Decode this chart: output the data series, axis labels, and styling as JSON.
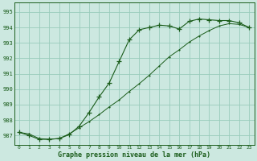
{
  "title": "Graphe pression niveau de la mer (hPa)",
  "bg_color": "#cce8e0",
  "grid_color": "#99ccbb",
  "line_color": "#1a5c1a",
  "xlim": [
    -0.5,
    23.5
  ],
  "ylim": [
    986.4,
    995.6
  ],
  "yticks": [
    987,
    988,
    989,
    990,
    991,
    992,
    993,
    994,
    995
  ],
  "xticks": [
    0,
    1,
    2,
    3,
    4,
    5,
    6,
    7,
    8,
    9,
    10,
    11,
    12,
    13,
    14,
    15,
    16,
    17,
    18,
    19,
    20,
    21,
    22,
    23
  ],
  "series1_x": [
    0,
    1,
    2,
    3,
    4,
    5,
    6,
    7,
    8,
    9,
    10,
    11,
    12,
    13,
    14,
    15,
    16,
    17,
    18,
    19,
    20,
    21,
    22,
    23
  ],
  "series1_y": [
    987.2,
    987.1,
    986.8,
    986.75,
    986.8,
    987.1,
    987.5,
    987.9,
    988.35,
    988.85,
    989.3,
    989.85,
    990.35,
    990.9,
    991.5,
    992.1,
    992.55,
    993.05,
    993.45,
    993.8,
    994.1,
    994.25,
    994.2,
    994.0
  ],
  "series2_x": [
    0,
    1,
    2,
    3,
    4,
    5,
    6,
    7,
    8,
    9,
    10,
    11,
    12,
    13,
    14,
    15,
    16,
    17,
    18,
    19,
    20,
    21,
    22,
    23
  ],
  "series2_y": [
    987.2,
    987.0,
    986.75,
    986.75,
    986.8,
    987.05,
    987.6,
    988.5,
    989.5,
    990.4,
    991.8,
    993.2,
    993.85,
    994.0,
    994.15,
    994.1,
    993.9,
    994.4,
    994.55,
    994.5,
    994.45,
    994.45,
    994.3,
    994.0
  ]
}
